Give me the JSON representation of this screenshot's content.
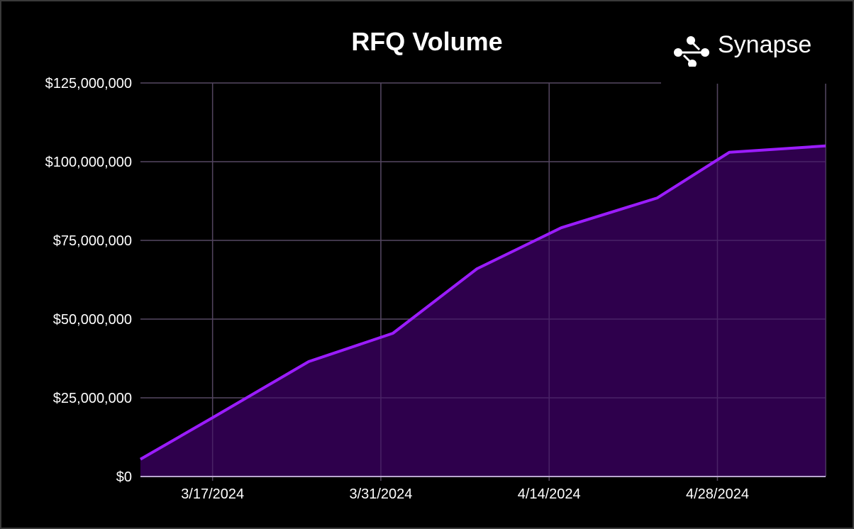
{
  "chart_data": {
    "type": "area",
    "title": "RFQ Volume",
    "xlabel": "",
    "ylabel": "",
    "x_ticks": [
      "3/17/2024",
      "3/31/2024",
      "4/14/2024",
      "4/28/2024"
    ],
    "y_ticks": [
      "$0",
      "$25,000,000",
      "$50,000,000",
      "$75,000,000",
      "$100,000,000",
      "$125,000,000"
    ],
    "ylim": [
      0,
      125000000
    ],
    "xlim": [
      "2024-03-11",
      "2024-05-07"
    ],
    "grid": true,
    "series": [
      {
        "x": [
          "2024-03-11",
          "2024-03-17",
          "2024-03-25",
          "2024-04-01",
          "2024-04-08",
          "2024-04-15",
          "2024-04-23",
          "2024-04-29",
          "2024-05-07"
        ],
        "values": [
          5500000,
          18700000,
          36500000,
          45500000,
          66000000,
          79000000,
          88500000,
          103000000,
          105000000
        ]
      }
    ],
    "colors": {
      "line": "#9b1cff",
      "fill": "#2e004c",
      "grid": "#3f3f3f",
      "background": "#000000"
    }
  },
  "brand": {
    "name": "Synapse",
    "logo_icon": "synapse-logo-icon"
  }
}
